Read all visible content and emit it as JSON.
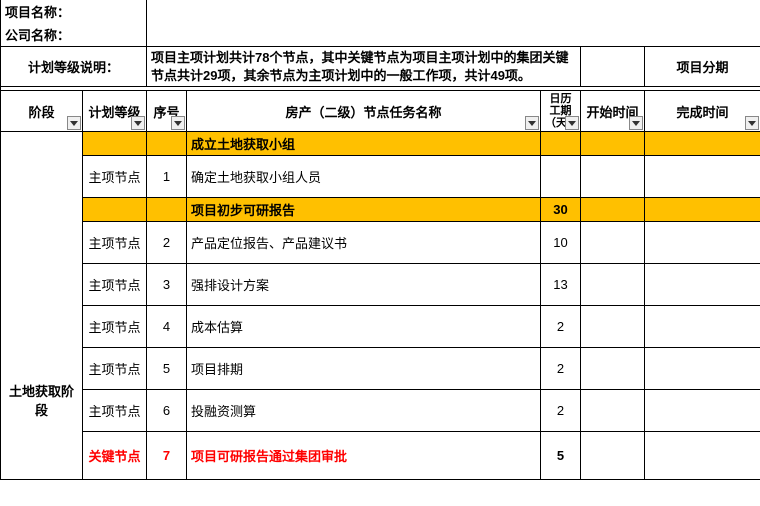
{
  "header": {
    "project_name_label": "项目名称：",
    "company_name_label": "公司名称：",
    "plan_level_label": "计划等级说明：",
    "plan_level_desc": "项目主项计划共计78个节点，其中关键节点为项目主项计划中的集团关键节点共计29项，其余节点为主项计划中的一般工作项，共计49项。",
    "project_phase_label": "项目分期"
  },
  "columns": {
    "phase": "阶段",
    "plan_level": "计划等级",
    "seq": "序号",
    "task_name": "房产（二级）节点任务名称",
    "duration": "日历工期（天）",
    "start": "开始时间",
    "end": "完成时间"
  },
  "phase_name": "土地获取阶段",
  "rows": [
    {
      "type": "yellow",
      "plan_level": "",
      "seq": "",
      "task": "成立土地获取小组",
      "dur": "",
      "start": "",
      "end": ""
    },
    {
      "type": "normal",
      "plan_level": "主项节点",
      "seq": "1",
      "task": "确定土地获取小组人员",
      "dur": "",
      "start": "",
      "end": ""
    },
    {
      "type": "yellow",
      "plan_level": "",
      "seq": "",
      "task": "项目初步可研报告",
      "dur": "30",
      "start": "",
      "end": ""
    },
    {
      "type": "normal",
      "plan_level": "主项节点",
      "seq": "2",
      "task": "产品定位报告、产品建议书",
      "dur": "10",
      "start": "",
      "end": ""
    },
    {
      "type": "normal",
      "plan_level": "主项节点",
      "seq": "3",
      "task": "强排设计方案",
      "dur": "13",
      "start": "",
      "end": ""
    },
    {
      "type": "normal",
      "plan_level": "主项节点",
      "seq": "4",
      "task": "成本估算",
      "dur": "2",
      "start": "",
      "end": ""
    },
    {
      "type": "normal",
      "plan_level": "主项节点",
      "seq": "5",
      "task": "项目排期",
      "dur": "2",
      "start": "",
      "end": ""
    },
    {
      "type": "normal",
      "plan_level": "主项节点",
      "seq": "6",
      "task": "投融资测算",
      "dur": "2",
      "start": "",
      "end": ""
    },
    {
      "type": "red",
      "plan_level": "关键节点",
      "seq": "7",
      "task": "项目可研报告通过集团审批",
      "dur": "5",
      "start": "",
      "end": ""
    }
  ],
  "colors": {
    "yellow": "#ffc000",
    "red": "#ff0000",
    "border": "#000000"
  }
}
